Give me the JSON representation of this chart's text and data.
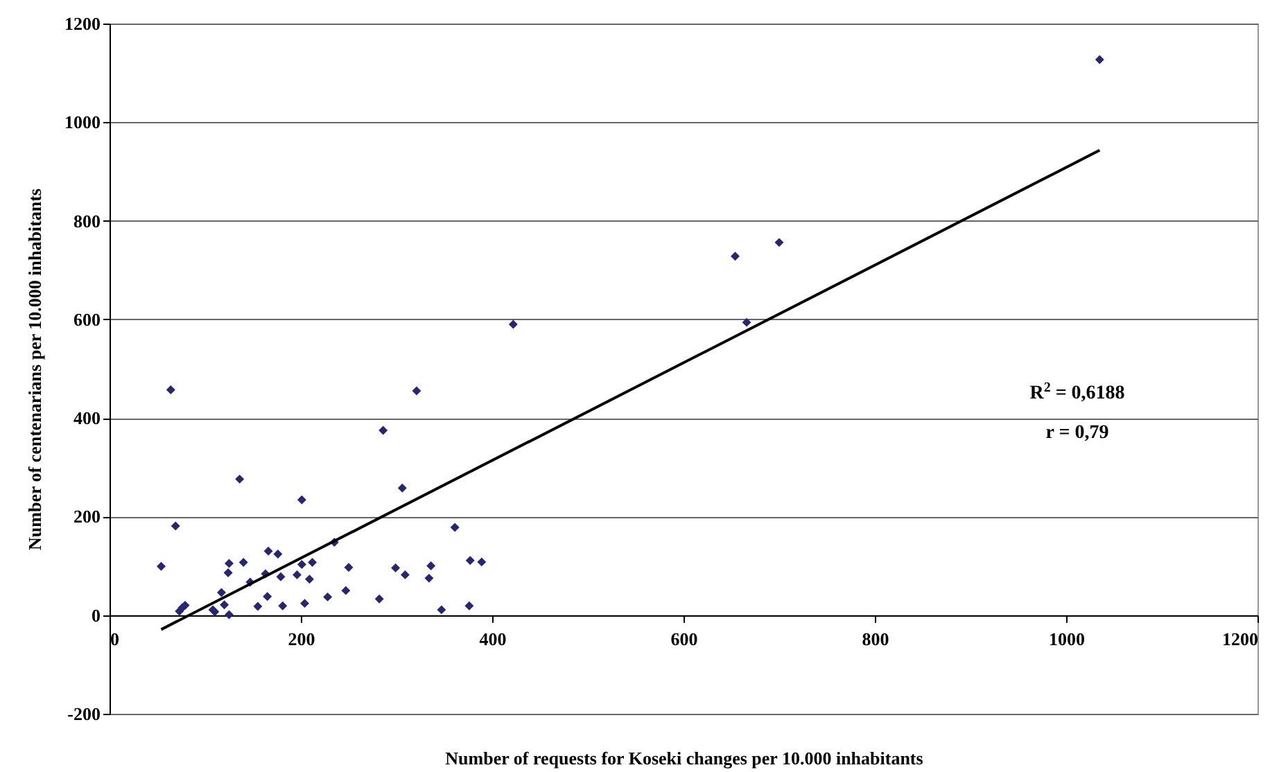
{
  "chart_data": {
    "type": "scatter",
    "xlabel": "Number of requests for Koseki changes per 10.000 inhabitants",
    "ylabel": "Number of centenarians per 10.000 inhabitants",
    "xlim": [
      0,
      1200
    ],
    "xticks": [
      0,
      200,
      400,
      600,
      800,
      1000,
      1200
    ],
    "ylim": [
      -200,
      1200
    ],
    "yticks": [
      -200,
      0,
      200,
      400,
      600,
      800,
      1000,
      1200
    ],
    "grid": "y",
    "marker": "diamond",
    "series": [
      {
        "color": "#262673",
        "x": [
          54,
          64,
          69,
          73,
          76,
          79,
          108,
          110,
          117,
          120,
          125,
          125,
          124,
          136,
          140,
          147,
          155,
          163,
          165,
          166,
          176,
          179,
          181,
          196,
          201,
          201,
          204,
          209,
          212,
          228,
          235,
          247,
          250,
          282,
          286,
          299,
          306,
          309,
          321,
          334,
          336,
          347,
          361,
          376,
          377,
          389,
          422,
          654,
          666,
          700,
          1035
        ],
        "values": [
          99,
          457,
          181,
          8,
          15,
          20,
          11,
          7,
          46,
          21,
          1,
          105,
          86,
          276,
          107,
          67,
          18,
          84,
          38,
          130,
          124,
          78,
          19,
          82,
          234,
          103,
          24,
          73,
          107,
          37,
          148,
          50,
          97,
          33,
          375,
          96,
          258,
          82,
          455,
          75,
          100,
          11,
          178,
          19,
          111,
          108,
          590,
          728,
          594,
          756,
          1127
        ]
      },
      {
        "type": "line",
        "color": "#000000",
        "line_style": "solid",
        "marker": "none",
        "x": [
          54,
          1035
        ],
        "values": [
          -29,
          943
        ]
      }
    ],
    "annotations": [
      "R$^{2}$ = 0,6188",
      "r = 0,79"
    ]
  }
}
